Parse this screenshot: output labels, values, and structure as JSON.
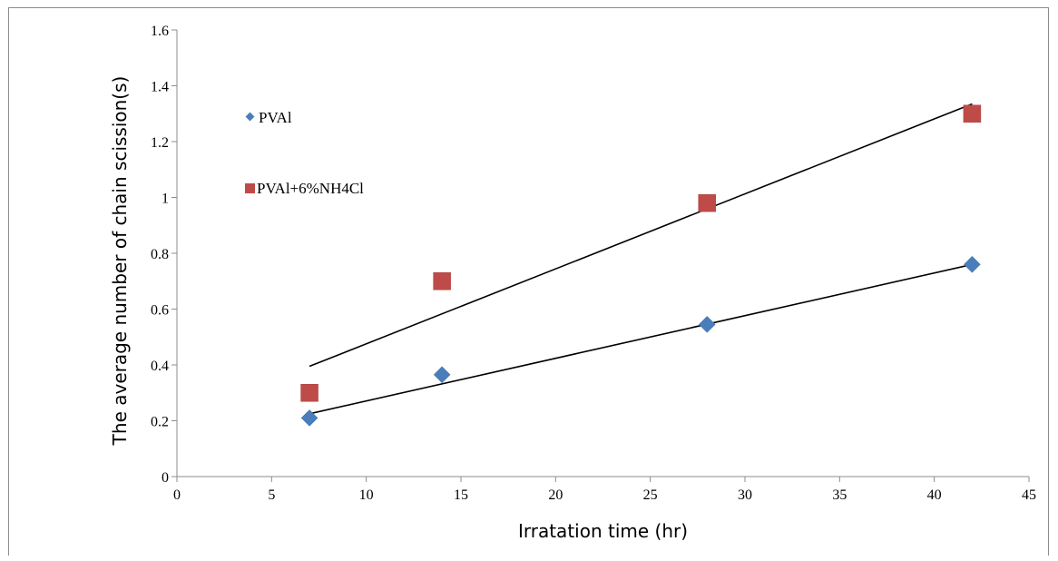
{
  "chart_data": {
    "type": "scatter",
    "xlabel": "Irratation time (hr)",
    "ylabel": "The average number of chain scission(s)",
    "xlim": [
      0,
      45
    ],
    "ylim": [
      0,
      1.6
    ],
    "x_ticks": [
      "0",
      "5",
      "10",
      "15",
      "20",
      "25",
      "30",
      "35",
      "40",
      "45"
    ],
    "y_ticks": [
      "0",
      "0.2",
      "0.4",
      "0.6",
      "0.8",
      "1",
      "1.2",
      "1.4",
      "1.6"
    ],
    "grid": false,
    "legend_position": "left",
    "series": [
      {
        "name": "PVAl",
        "marker": "diamond",
        "color": "#4a7ebb",
        "x": [
          7,
          14,
          28,
          42
        ],
        "y": [
          0.21,
          0.365,
          0.545,
          0.76
        ],
        "trendline": {
          "x": [
            7,
            42
          ],
          "y": [
            0.225,
            0.76
          ]
        }
      },
      {
        "name": "PVAl+6%NH4Cl",
        "marker": "square",
        "color": "#be4b48",
        "x": [
          7,
          14,
          28,
          42
        ],
        "y": [
          0.3,
          0.7,
          0.98,
          1.3
        ],
        "trendline": {
          "x": [
            7,
            42
          ],
          "y": [
            0.395,
            1.335
          ]
        }
      }
    ]
  }
}
